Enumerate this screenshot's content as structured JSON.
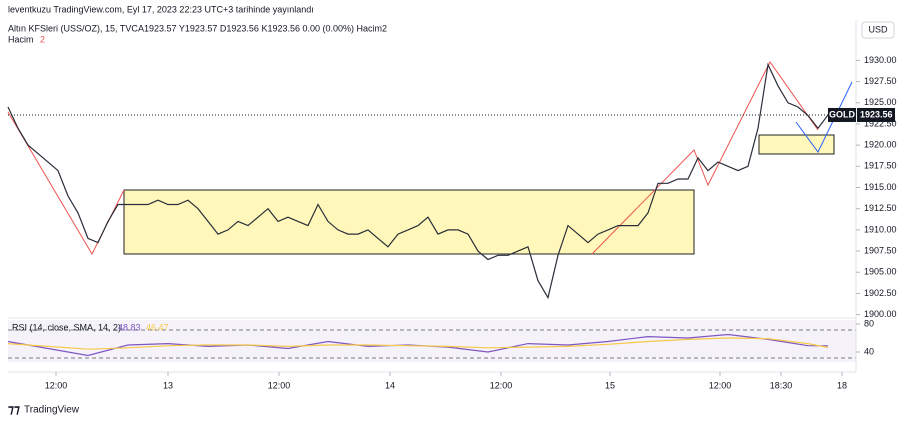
{
  "header": {
    "published": "leventkuzu TradingView.com, Eyl 17, 2023 22:23 UTC+3 tarihinde yayınlandı",
    "currency": "USD",
    "logo": "TradingView"
  },
  "chart_data": [
    {
      "type": "line",
      "title": "Altın KFSleri (USS/OZ), 15, TVC",
      "legend_text": "A1923.57  Y1923.57  D1923.56  K1923.56  0.00 (0.00%)  Hacim2",
      "volume_label": "Hacim",
      "volume_value": "2",
      "symbol": "GOLD",
      "last_price": 1923.56,
      "series": [
        {
          "name": "Altın KFSleri",
          "color": "#2a2e39",
          "values": [
            1924.5,
            1922,
            1920,
            1919,
            1918,
            1917,
            1914,
            1912,
            1909,
            1908.5,
            1911,
            1913,
            1913,
            1913,
            1913,
            1913.5,
            1913,
            1913,
            1913.5,
            1912.5,
            1911,
            1909.5,
            1910,
            1911,
            1910.5,
            1911.5,
            1912.5,
            1911,
            1911.5,
            1911,
            1910.5,
            1913,
            1911,
            1910,
            1909.5,
            1909.5,
            1910,
            1909,
            1908,
            1909.5,
            1910,
            1910.5,
            1911.5,
            1909.5,
            1910,
            1910,
            1909.5,
            1907.5,
            1906.5,
            1907,
            1907,
            1907.5,
            1908,
            1904,
            1902,
            1907,
            1910.5,
            1909.5,
            1908.5,
            1909.5,
            1910,
            1910.5,
            1910.5,
            1910.5,
            1912,
            1915.5,
            1915.5,
            1916,
            1916,
            1918.5,
            1917,
            1918,
            1917.5,
            1917,
            1917.5,
            1922,
            1929.5,
            1927,
            1925,
            1924.5,
            1923.5,
            1922,
            1923.56
          ]
        }
      ],
      "xlim": [
        0,
        84.7
      ],
      "ylim": [
        1899.6,
        1933
      ],
      "yticks": [
        {
          "value": 1900,
          "label": "1900.00"
        },
        {
          "value": 1902.5,
          "label": "1902.50"
        },
        {
          "value": 1905,
          "label": "1905.00"
        },
        {
          "value": 1907.5,
          "label": "1907.50"
        },
        {
          "value": 1910,
          "label": "1910.00"
        },
        {
          "value": 1912.5,
          "label": "1912.50"
        },
        {
          "value": 1915,
          "label": "1915.00"
        },
        {
          "value": 1917.5,
          "label": "1917.50"
        },
        {
          "value": 1920,
          "label": "1920.00"
        },
        {
          "value": 1922.5,
          "label": "1922.50"
        },
        {
          "value": 1925,
          "label": "1925.00"
        },
        {
          "value": 1927.5,
          "label": "1927.50"
        },
        {
          "value": 1930,
          "label": "1930.00"
        }
      ],
      "xticks": [
        {
          "value": 4.8,
          "label": "12:00"
        },
        {
          "value": 16,
          "label": "13"
        },
        {
          "value": 27.1,
          "label": "12:00"
        },
        {
          "value": 38.2,
          "label": "14"
        },
        {
          "value": 49.3,
          "label": "12:00"
        },
        {
          "value": 60.2,
          "label": "15"
        },
        {
          "value": 71.2,
          "label": "12:00"
        },
        {
          "value": 77.3,
          "label": "18:30"
        },
        {
          "value": 83.4,
          "label": "18"
        }
      ]
    },
    {
      "type": "line",
      "title": "RSI (14, close, SMA, 14, 2)",
      "value_labels": [
        "48.83",
        "46.47"
      ],
      "x": [
        0,
        4,
        8,
        12,
        16,
        20,
        24,
        28,
        32,
        36,
        40,
        44,
        48,
        52,
        56,
        60,
        64,
        68,
        72,
        76,
        80,
        82
      ],
      "series": [
        {
          "name": "RSI",
          "color": "#7e57c2",
          "values": [
            55,
            45,
            35,
            50,
            52,
            48,
            50,
            45,
            55,
            48,
            50,
            47,
            40,
            52,
            50,
            55,
            62,
            60,
            65,
            58,
            49,
            48.83
          ]
        },
        {
          "name": "SMA",
          "color": "#f7c948",
          "values": [
            52,
            48,
            44,
            46,
            49,
            50,
            50,
            48,
            50,
            50,
            49,
            48,
            46,
            47,
            48,
            51,
            55,
            58,
            60,
            59,
            52,
            46.47
          ]
        }
      ],
      "xlim": [
        0,
        84.7
      ],
      "ylim": [
        25.7,
        85.7
      ],
      "yticks": [
        40,
        80
      ]
    }
  ]
}
